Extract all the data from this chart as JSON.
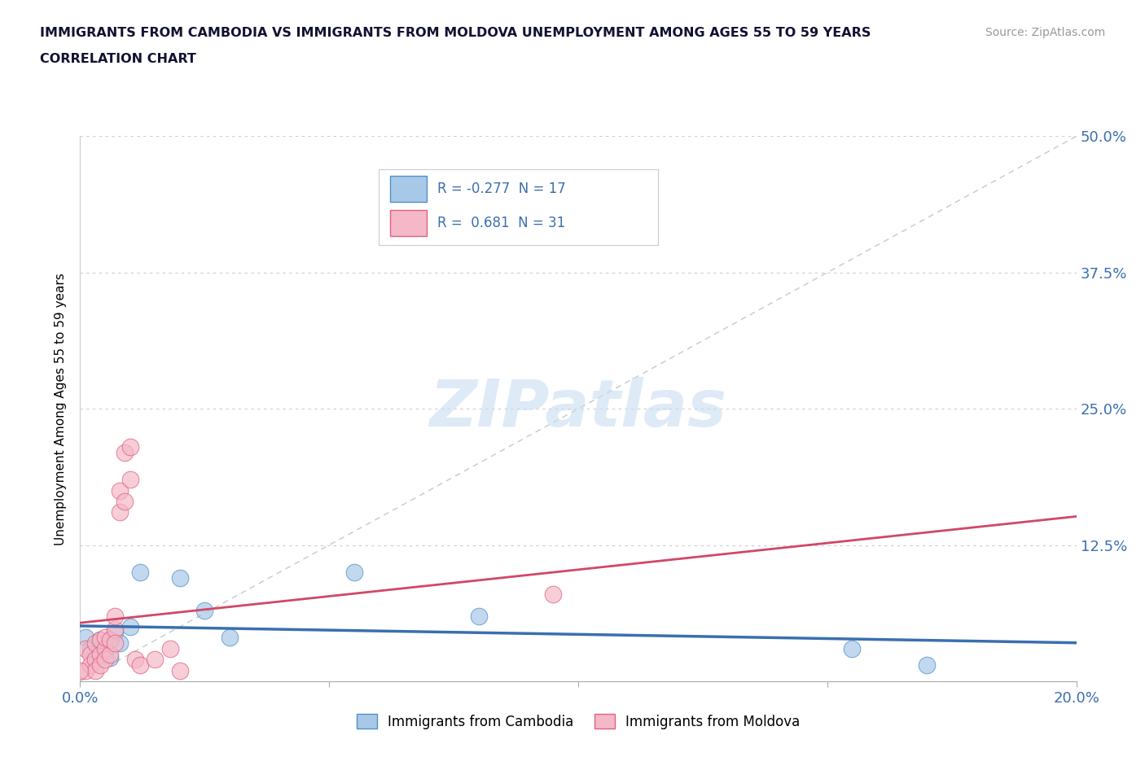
{
  "title_line1": "IMMIGRANTS FROM CAMBODIA VS IMMIGRANTS FROM MOLDOVA UNEMPLOYMENT AMONG AGES 55 TO 59 YEARS",
  "title_line2": "CORRELATION CHART",
  "source_text": "Source: ZipAtlas.com",
  "ylabel": "Unemployment Among Ages 55 to 59 years",
  "xlim": [
    0.0,
    0.2
  ],
  "ylim": [
    0.0,
    0.5
  ],
  "xticks": [
    0.0,
    0.05,
    0.1,
    0.15,
    0.2
  ],
  "yticks": [
    0.0,
    0.125,
    0.25,
    0.375,
    0.5
  ],
  "cambodia_color": "#a8c8e8",
  "moldova_color": "#f4b8c8",
  "cambodia_edge_color": "#5090c8",
  "moldova_edge_color": "#e06080",
  "cambodia_trend_color": "#3a6fb0",
  "moldova_trend_color": "#d04868",
  "diagonal_color": "#c8c8c8",
  "watermark_color": "#c8ddf0",
  "legend_cambodia": "Immigrants from Cambodia",
  "legend_moldova": "Immigrants from Moldova",
  "R_cambodia": -0.277,
  "N_cambodia": 17,
  "R_moldova": 0.681,
  "N_moldova": 31,
  "cambodia_x": [
    0.001,
    0.002,
    0.003,
    0.004,
    0.005,
    0.006,
    0.007,
    0.008,
    0.01,
    0.012,
    0.02,
    0.025,
    0.03,
    0.055,
    0.08,
    0.155,
    0.17
  ],
  "cambodia_y": [
    0.04,
    0.03,
    0.025,
    0.038,
    0.028,
    0.022,
    0.045,
    0.035,
    0.05,
    0.1,
    0.095,
    0.065,
    0.04,
    0.1,
    0.06,
    0.03,
    0.015
  ],
  "moldova_x": [
    0.001,
    0.001,
    0.002,
    0.002,
    0.003,
    0.003,
    0.003,
    0.004,
    0.004,
    0.004,
    0.005,
    0.005,
    0.005,
    0.006,
    0.006,
    0.007,
    0.007,
    0.007,
    0.008,
    0.008,
    0.009,
    0.009,
    0.01,
    0.01,
    0.011,
    0.012,
    0.015,
    0.018,
    0.02,
    0.095,
    0.0
  ],
  "moldova_y": [
    0.03,
    0.01,
    0.025,
    0.015,
    0.02,
    0.035,
    0.01,
    0.025,
    0.038,
    0.015,
    0.03,
    0.04,
    0.02,
    0.025,
    0.038,
    0.048,
    0.035,
    0.06,
    0.155,
    0.175,
    0.165,
    0.21,
    0.185,
    0.215,
    0.02,
    0.015,
    0.02,
    0.03,
    0.01,
    0.08,
    0.01
  ]
}
